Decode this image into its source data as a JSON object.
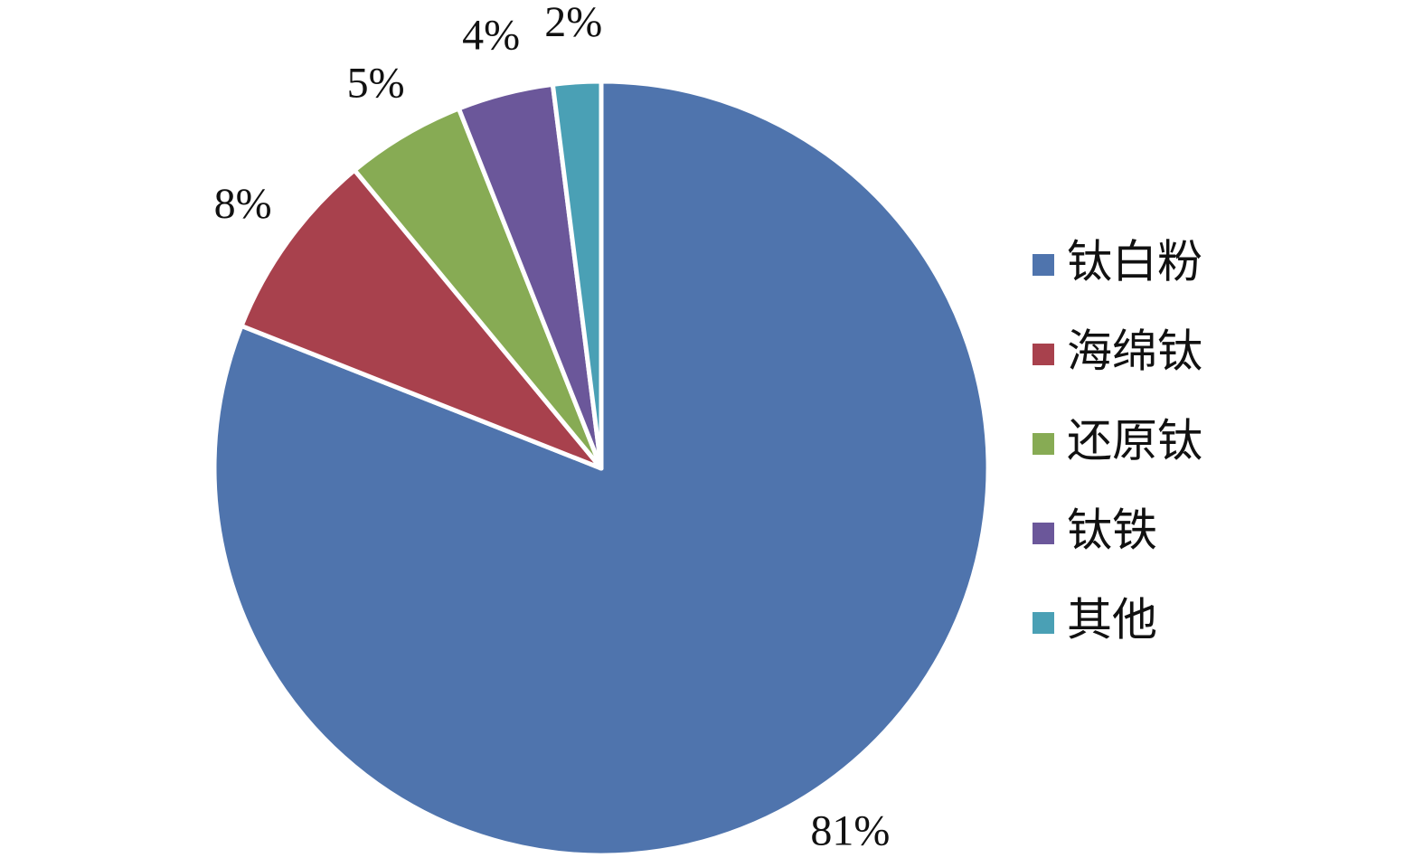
{
  "chart_data": {
    "type": "pie",
    "categories": [
      "钛白粉",
      "海绵钛",
      "还原钛",
      "钛铁",
      "其他"
    ],
    "values": [
      81,
      8,
      5,
      4,
      2
    ],
    "value_labels": [
      "81%",
      "8%",
      "5%",
      "4%",
      "2%"
    ],
    "colors": [
      "#4f74ad",
      "#a8414d",
      "#87ab54",
      "#6b579a",
      "#4aa0b5"
    ],
    "legend": "right"
  }
}
